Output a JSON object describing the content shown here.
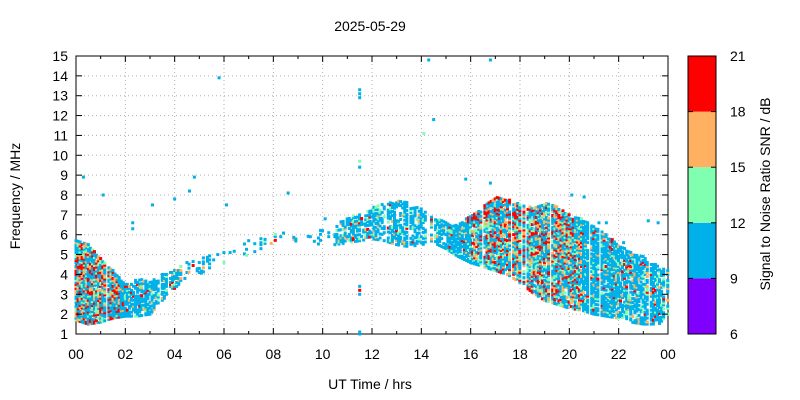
{
  "chart_data": {
    "type": "scatter",
    "title": "2025-05-29",
    "xlabel": "UT Time / hrs",
    "ylabel": "Frequency / MHz",
    "xlim": [
      0,
      24
    ],
    "ylim": [
      1,
      15
    ],
    "xticks": [
      "00",
      "02",
      "04",
      "06",
      "08",
      "10",
      "12",
      "14",
      "16",
      "18",
      "20",
      "22",
      "00"
    ],
    "yticks": [
      "1",
      "2",
      "3",
      "4",
      "5",
      "6",
      "7",
      "8",
      "9",
      "10",
      "11",
      "12",
      "13",
      "14",
      "15"
    ],
    "colorbar": {
      "label": "Signal to Noise Ratio SNR / dB",
      "ticks": [
        "6",
        "9",
        "12",
        "15",
        "18",
        "21"
      ],
      "range": [
        6,
        21
      ],
      "bands": [
        {
          "from": 6,
          "to": 9,
          "color": "#8000ff"
        },
        {
          "from": 9,
          "to": 12,
          "color": "#00b0e8"
        },
        {
          "from": 12,
          "to": 15,
          "color": "#80ffb0"
        },
        {
          "from": 15,
          "to": 18,
          "color": "#ffb060"
        },
        {
          "from": 18,
          "to": 21,
          "color": "#ff0000"
        }
      ]
    },
    "envelope": [
      [
        0.0,
        1.7,
        5.7
      ],
      [
        0.5,
        1.5,
        5.5
      ],
      [
        1.0,
        1.6,
        4.8
      ],
      [
        1.5,
        1.8,
        4.2
      ],
      [
        2.0,
        1.9,
        3.5
      ],
      [
        2.5,
        1.9,
        3.8
      ],
      [
        3.0,
        2.0,
        3.6
      ],
      [
        3.5,
        2.7,
        4.0
      ],
      [
        4.0,
        3.3,
        4.2
      ],
      [
        4.5,
        3.9,
        4.6
      ],
      [
        5.0,
        4.0,
        4.8
      ],
      [
        5.5,
        4.4,
        5.0
      ],
      [
        6.0,
        4.6,
        5.1
      ],
      [
        6.5,
        4.8,
        5.4
      ],
      [
        7.0,
        5.0,
        5.6
      ],
      [
        7.5,
        5.3,
        5.8
      ],
      [
        8.0,
        5.5,
        6.0
      ],
      [
        8.5,
        5.6,
        6.1
      ],
      [
        9.0,
        5.7,
        6.2
      ],
      [
        9.5,
        5.6,
        6.0
      ],
      [
        10.0,
        5.5,
        6.3
      ],
      [
        10.5,
        5.5,
        6.5
      ],
      [
        11.0,
        5.6,
        6.9
      ],
      [
        11.5,
        5.7,
        7.0
      ],
      [
        12.0,
        5.8,
        7.4
      ],
      [
        12.5,
        5.7,
        7.6
      ],
      [
        13.0,
        5.5,
        7.7
      ],
      [
        13.5,
        5.4,
        7.6
      ],
      [
        14.0,
        5.5,
        7.3
      ],
      [
        14.5,
        5.6,
        6.9
      ],
      [
        15.0,
        5.3,
        6.6
      ],
      [
        15.5,
        4.9,
        6.5
      ],
      [
        16.0,
        4.6,
        7.0
      ],
      [
        16.5,
        4.4,
        7.4
      ],
      [
        17.0,
        4.2,
        7.9
      ],
      [
        17.5,
        4.0,
        7.8
      ],
      [
        18.0,
        3.6,
        7.6
      ],
      [
        18.5,
        3.1,
        7.4
      ],
      [
        19.0,
        2.7,
        7.6
      ],
      [
        19.5,
        2.5,
        7.4
      ],
      [
        20.0,
        2.3,
        7.0
      ],
      [
        20.5,
        2.2,
        6.8
      ],
      [
        21.0,
        2.0,
        6.4
      ],
      [
        21.5,
        1.9,
        6.0
      ],
      [
        22.0,
        1.8,
        5.5
      ],
      [
        22.5,
        1.6,
        5.1
      ],
      [
        23.0,
        1.5,
        4.9
      ],
      [
        23.5,
        1.5,
        4.5
      ],
      [
        24.0,
        1.6,
        4.2
      ]
    ],
    "isolated_points": [
      [
        0.3,
        8.9,
        10
      ],
      [
        1.1,
        8.0,
        10
      ],
      [
        2.3,
        6.6,
        10
      ],
      [
        2.3,
        6.3,
        10
      ],
      [
        3.1,
        7.5,
        10
      ],
      [
        4.0,
        7.8,
        10
      ],
      [
        4.6,
        8.2,
        10
      ],
      [
        4.8,
        8.9,
        10
      ],
      [
        5.8,
        13.9,
        10
      ],
      [
        6.1,
        7.5,
        10
      ],
      [
        8.6,
        8.1,
        10
      ],
      [
        10.1,
        6.8,
        10
      ],
      [
        11.5,
        9.4,
        10
      ],
      [
        11.5,
        9.7,
        13
      ],
      [
        11.5,
        12.9,
        10
      ],
      [
        11.5,
        13.1,
        10
      ],
      [
        11.5,
        13.3,
        10
      ],
      [
        11.5,
        3.2,
        19
      ],
      [
        11.5,
        3.4,
        10
      ],
      [
        11.5,
        3.0,
        10
      ],
      [
        11.5,
        1.0,
        10
      ],
      [
        11.5,
        1.1,
        10
      ],
      [
        14.1,
        11.1,
        13
      ],
      [
        14.3,
        14.8,
        10
      ],
      [
        14.5,
        11.8,
        10
      ],
      [
        16.8,
        14.8,
        10
      ],
      [
        15.8,
        8.8,
        10
      ],
      [
        16.8,
        8.6,
        10
      ],
      [
        20.1,
        8.0,
        10
      ],
      [
        20.6,
        7.9,
        10
      ],
      [
        21.2,
        6.6,
        10
      ],
      [
        21.5,
        6.6,
        10
      ],
      [
        22.2,
        5.6,
        10
      ],
      [
        23.2,
        6.7,
        10
      ],
      [
        23.6,
        6.6,
        10
      ],
      [
        8.3,
        5.9,
        10
      ],
      [
        9.5,
        5.9,
        10
      ],
      [
        7.0,
        5.7,
        10
      ]
    ]
  }
}
